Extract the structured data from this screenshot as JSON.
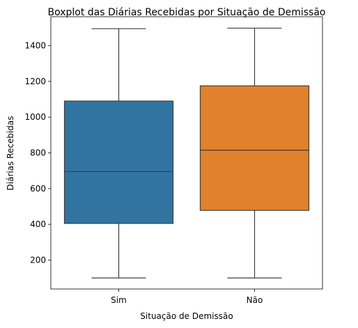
{
  "chart_data": {
    "type": "boxplot",
    "title": "Boxplot das Diárias Recebidas por Situação de Demissão",
    "xlabel": "Situação de Demissão",
    "ylabel": "Diárias Recebidas",
    "categories": [
      "Sim",
      "Não"
    ],
    "boxes": [
      {
        "category": "Sim",
        "min": 100,
        "q1": 405,
        "median": 695,
        "q3": 1090,
        "max": 1495,
        "color": "#3274a1"
      },
      {
        "category": "Não",
        "min": 100,
        "q1": 478,
        "median": 815,
        "q3": 1175,
        "max": 1498,
        "color": "#e1812c"
      }
    ],
    "ylim": [
      38,
      1562
    ],
    "yticks": [
      200,
      400,
      600,
      800,
      1000,
      1200,
      1400
    ],
    "grid": false,
    "legend": false
  }
}
